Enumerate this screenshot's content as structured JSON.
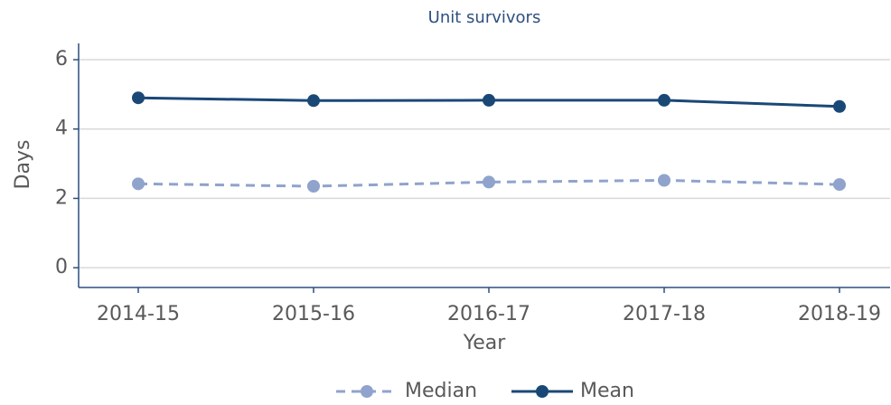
{
  "chart_data": {
    "type": "line",
    "title": "Unit survivors",
    "x_label": "Year",
    "y_label": "Days",
    "categories": [
      "2014-15",
      "2015-16",
      "2016-17",
      "2017-18",
      "2018-19"
    ],
    "series": [
      {
        "name": "Median",
        "color": "#8fa3cc",
        "dash": true,
        "values": [
          2.42,
          2.35,
          2.47,
          2.52,
          2.4
        ]
      },
      {
        "name": "Mean",
        "color": "#1a4876",
        "dash": false,
        "values": [
          4.9,
          4.82,
          4.83,
          4.83,
          4.65
        ]
      }
    ],
    "ylim": [
      -0.57,
      6.47
    ],
    "yticks": [
      0,
      2,
      4,
      6
    ],
    "grid": true,
    "legend": "bottom"
  }
}
